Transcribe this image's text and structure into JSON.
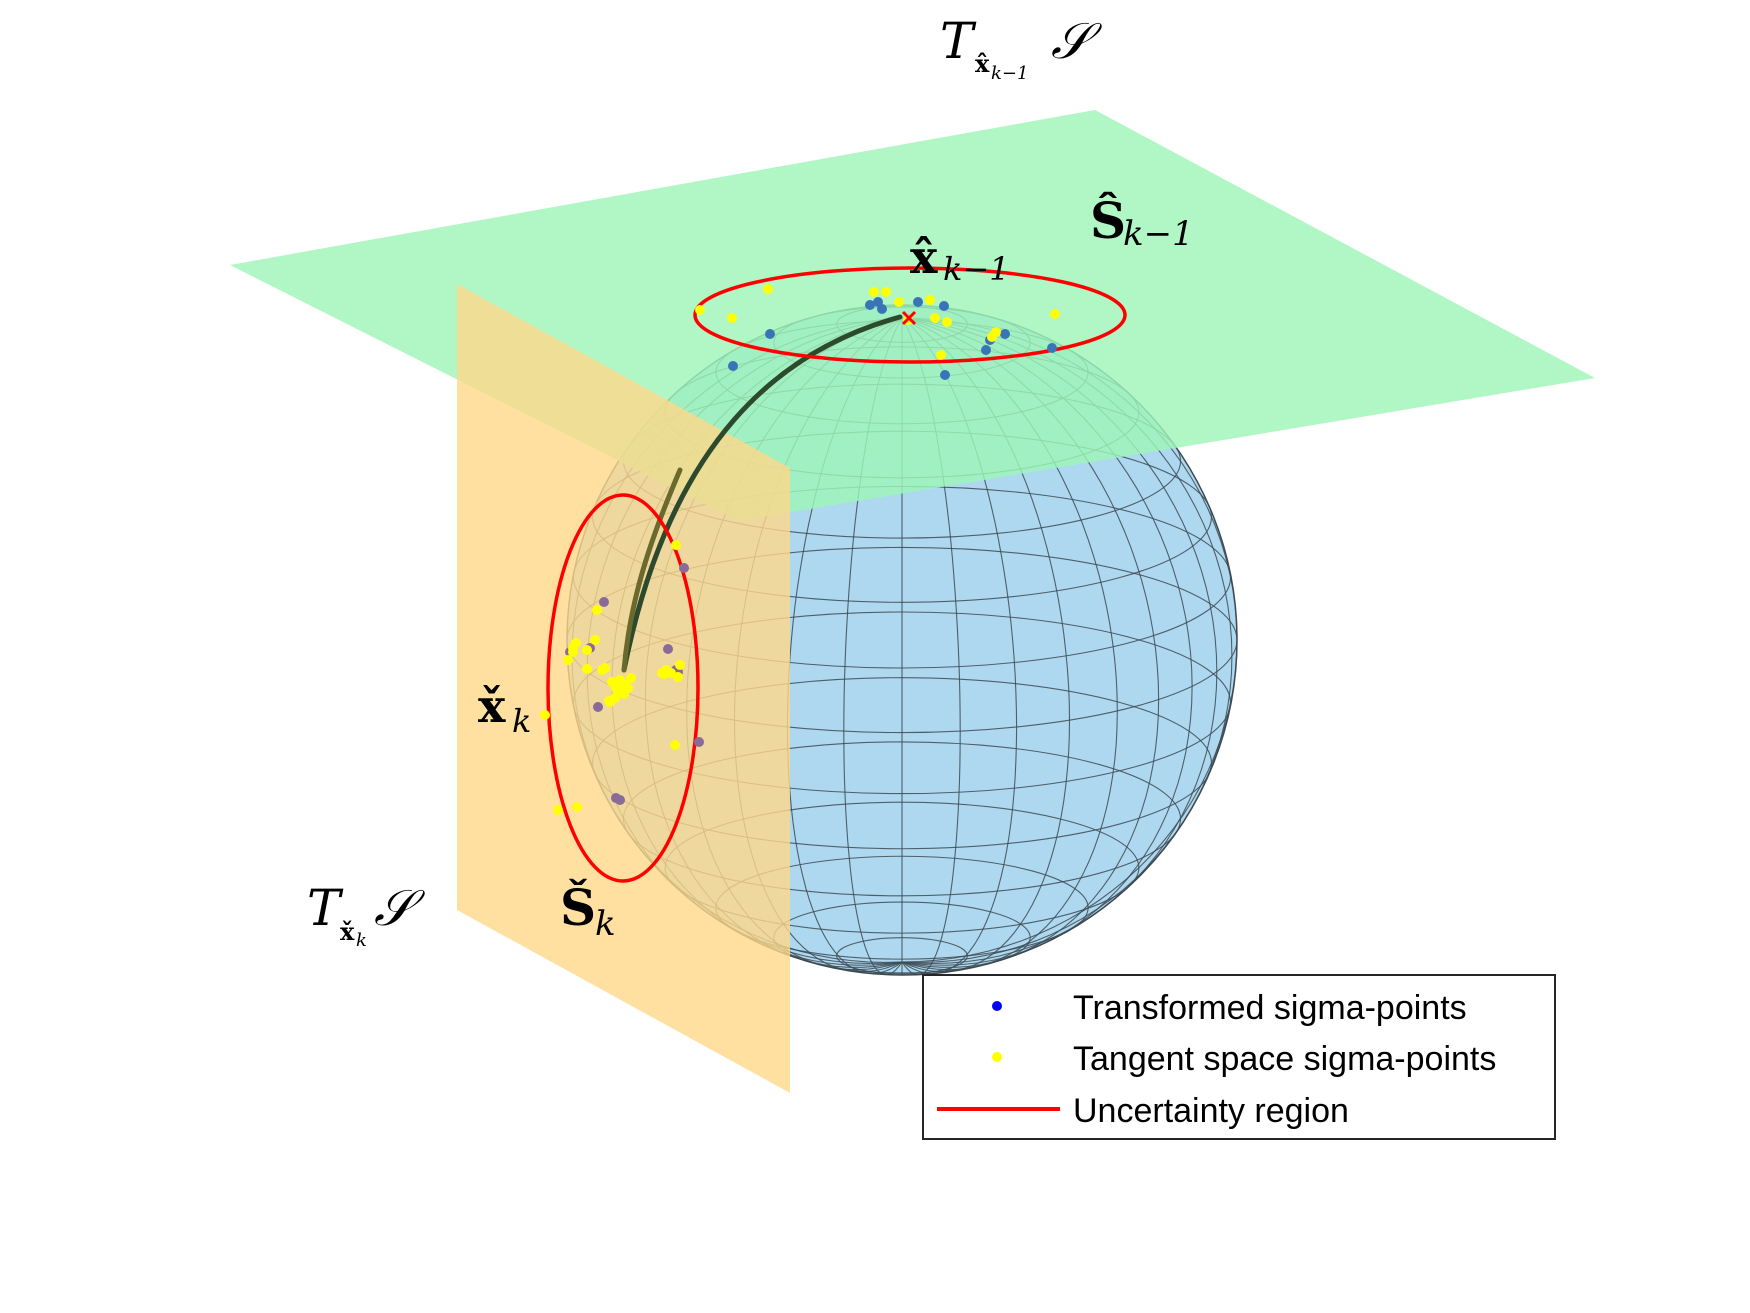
{
  "labels": {
    "top_tangent_space": {
      "main": "T",
      "sub": "x̂",
      "subsub": "k−1",
      "tail": "𝒮"
    },
    "top_region": {
      "main": "Ŝ",
      "sub": "k−1"
    },
    "top_point": {
      "main": "x̂",
      "sub": "k−1"
    },
    "side_point": {
      "main": "x̌",
      "sub": "k"
    },
    "side_region": {
      "main": "Š",
      "sub": "k"
    },
    "side_tangent_space": {
      "main": "T",
      "sub": "x̌",
      "subsub": "k",
      "tail": "𝒮"
    }
  },
  "legend": {
    "items": [
      {
        "label": "Transformed sigma-points",
        "color": "#0000ff",
        "kind": "marker"
      },
      {
        "label": "Tangent space sigma-points",
        "color": "#ffff00",
        "kind": "marker"
      },
      {
        "label": "Uncertainty region",
        "color": "#ff0000",
        "kind": "line"
      }
    ]
  },
  "colors": {
    "sphere": "#add8f0",
    "top_plane": "#9ff5b8",
    "side_plane": "#ffd88a",
    "ellipse": "#ff0000",
    "blue_points": "#3a74b8",
    "yellow_points": "#ffff00",
    "purple_points": "#8a6a98",
    "geodesic": "#2e4a2e"
  }
}
